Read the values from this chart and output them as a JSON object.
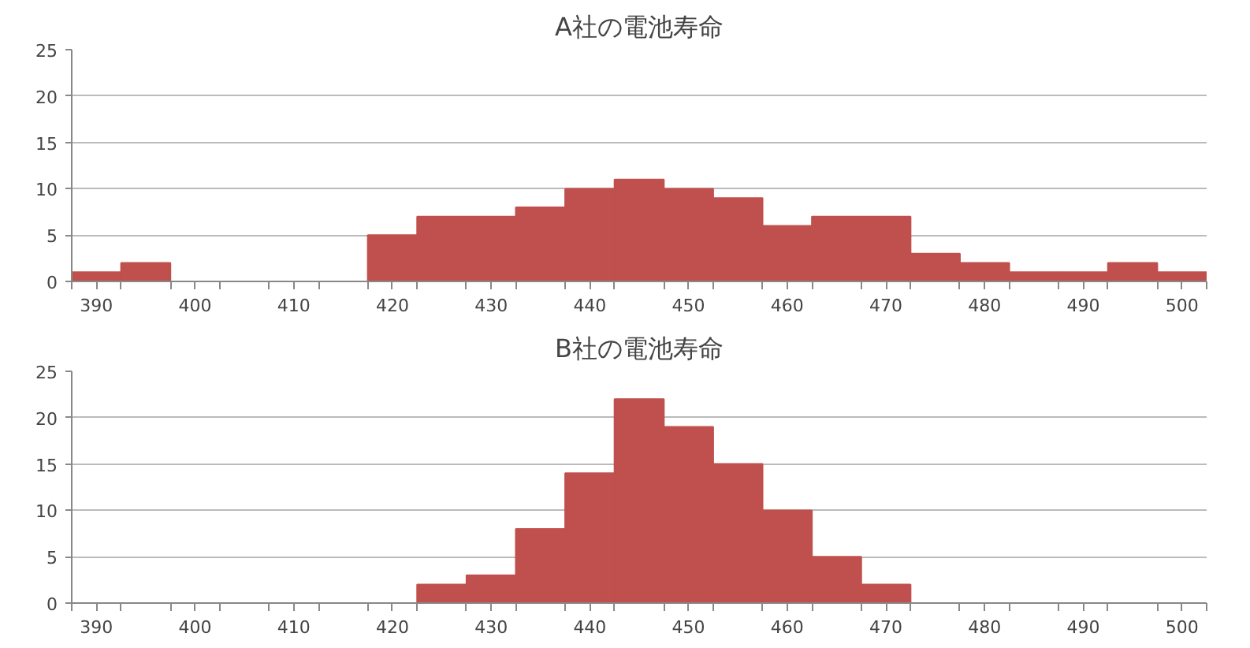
{
  "chart_data": [
    {
      "type": "histogram",
      "title": "A社の電池寿命",
      "bins": [
        387.5,
        392.5,
        397.5,
        402.5,
        407.5,
        412.5,
        417.5,
        422.5,
        427.5,
        432.5,
        437.5,
        442.5,
        447.5,
        452.5,
        457.5,
        462.5,
        467.5,
        472.5,
        477.5,
        482.5,
        487.5,
        492.5,
        497.5,
        502.5
      ],
      "values": [
        1,
        2,
        0,
        0,
        0,
        0,
        5,
        7,
        7,
        8,
        10,
        11,
        10,
        9,
        6,
        7,
        7,
        3,
        2,
        1,
        1,
        2,
        1
      ],
      "color": "#c0504d",
      "xlim": [
        387.5,
        502.5
      ],
      "xticks": [
        {
          "value": 387.5,
          "label": null
        },
        390,
        {
          "value": 392.5,
          "label": null
        },
        {
          "value": 397.5,
          "label": null
        },
        400,
        {
          "value": 402.5,
          "label": null
        },
        {
          "value": 407.5,
          "label": null
        },
        410,
        {
          "value": 412.5,
          "label": null
        },
        {
          "value": 417.5,
          "label": null
        },
        420,
        {
          "value": 422.5,
          "label": null
        },
        {
          "value": 427.5,
          "label": null
        },
        430,
        {
          "value": 432.5,
          "label": null
        },
        {
          "value": 437.5,
          "label": null
        },
        440,
        {
          "value": 442.5,
          "label": null
        },
        {
          "value": 447.5,
          "label": null
        },
        450,
        {
          "value": 452.5,
          "label": null
        },
        {
          "value": 457.5,
          "label": null
        },
        460,
        {
          "value": 462.5,
          "label": null
        },
        {
          "value": 467.5,
          "label": null
        },
        470,
        {
          "value": 472.5,
          "label": null
        },
        {
          "value": 477.5,
          "label": null
        },
        480,
        {
          "value": 482.5,
          "label": null
        },
        {
          "value": 487.5,
          "label": null
        },
        490,
        {
          "value": 492.5,
          "label": null
        },
        {
          "value": 497.5,
          "label": null
        },
        500,
        {
          "value": 502.5,
          "label": null
        }
      ],
      "ylim": [
        0,
        25
      ],
      "yticks": [
        0,
        5,
        10,
        15,
        20,
        25
      ],
      "grid": "y",
      "legend": false
    },
    {
      "type": "histogram",
      "title": "B社の電池寿命",
      "bins": [
        387.5,
        392.5,
        397.5,
        402.5,
        407.5,
        412.5,
        417.5,
        422.5,
        427.5,
        432.5,
        437.5,
        442.5,
        447.5,
        452.5,
        457.5,
        462.5,
        467.5,
        472.5,
        477.5,
        482.5,
        487.5,
        492.5,
        497.5,
        502.5
      ],
      "values": [
        0,
        0,
        0,
        0,
        0,
        0,
        0,
        2,
        3,
        8,
        14,
        22,
        19,
        15,
        10,
        5,
        2,
        0,
        0,
        0,
        0,
        0,
        0
      ],
      "color": "#c0504d",
      "xlim": [
        387.5,
        502.5
      ],
      "xticks": [
        {
          "value": 387.5,
          "label": null
        },
        390,
        {
          "value": 392.5,
          "label": null
        },
        {
          "value": 397.5,
          "label": null
        },
        400,
        {
          "value": 402.5,
          "label": null
        },
        {
          "value": 407.5,
          "label": null
        },
        410,
        {
          "value": 412.5,
          "label": null
        },
        {
          "value": 417.5,
          "label": null
        },
        420,
        {
          "value": 422.5,
          "label": null
        },
        {
          "value": 427.5,
          "label": null
        },
        430,
        {
          "value": 432.5,
          "label": null
        },
        {
          "value": 437.5,
          "label": null
        },
        440,
        {
          "value": 442.5,
          "label": null
        },
        {
          "value": 447.5,
          "label": null
        },
        450,
        {
          "value": 452.5,
          "label": null
        },
        {
          "value": 457.5,
          "label": null
        },
        460,
        {
          "value": 462.5,
          "label": null
        },
        {
          "value": 467.5,
          "label": null
        },
        470,
        {
          "value": 472.5,
          "label": null
        },
        {
          "value": 477.5,
          "label": null
        },
        480,
        {
          "value": 482.5,
          "label": null
        },
        {
          "value": 487.5,
          "label": null
        },
        490,
        {
          "value": 492.5,
          "label": null
        },
        {
          "value": 497.5,
          "label": null
        },
        500,
        {
          "value": 502.5,
          "label": null
        }
      ],
      "ylim": [
        0,
        25
      ],
      "yticks": [
        0,
        5,
        10,
        15,
        20,
        25
      ],
      "grid": "y",
      "legend": false
    }
  ]
}
